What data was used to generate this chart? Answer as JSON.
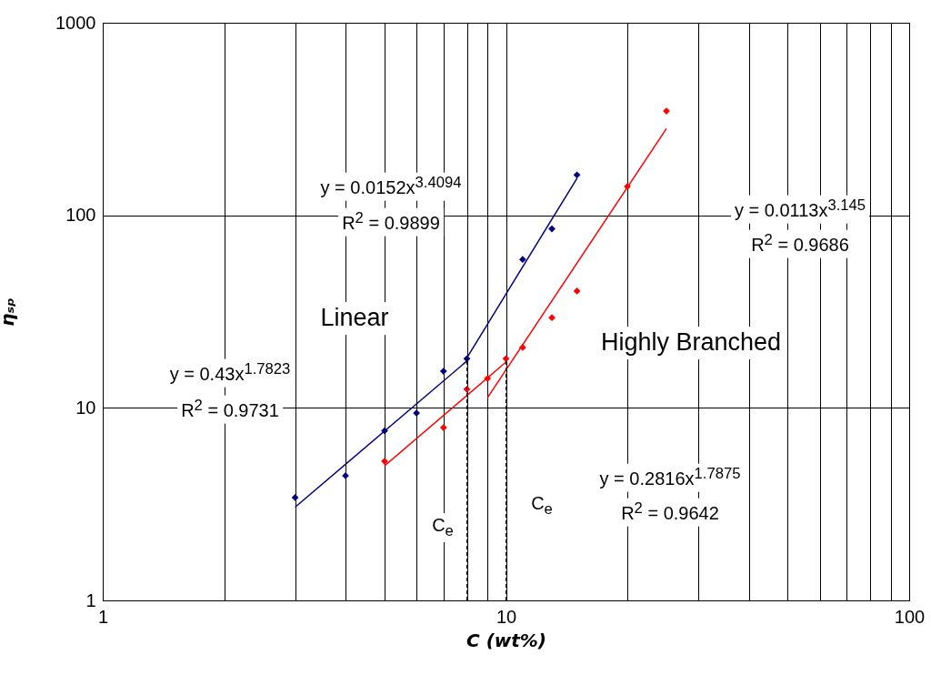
{
  "chart_data": {
    "type": "scatter",
    "xlabel": "C (wt%)",
    "ylabel": "ηₛₚ",
    "log": "xy",
    "grid": true,
    "marker": "diamond",
    "xlim": [
      1,
      100
    ],
    "ylim": [
      1,
      1000
    ],
    "xticks": [
      1,
      {
        "value": 2,
        "label": null
      },
      {
        "value": 3,
        "label": null
      },
      {
        "value": 4,
        "label": null
      },
      {
        "value": 5,
        "label": null
      },
      {
        "value": 6,
        "label": null
      },
      {
        "value": 7,
        "label": null
      },
      {
        "value": 8,
        "label": null
      },
      {
        "value": 9,
        "label": null
      },
      10,
      {
        "value": 20,
        "label": null
      },
      {
        "value": 30,
        "label": null
      },
      {
        "value": 40,
        "label": null
      },
      {
        "value": 50,
        "label": null
      },
      {
        "value": 60,
        "label": null
      },
      {
        "value": 70,
        "label": null
      },
      {
        "value": 80,
        "label": null
      },
      {
        "value": 90,
        "label": null
      },
      100
    ],
    "yticks": [
      1,
      10,
      100,
      1000
    ],
    "series": [
      {
        "color": "#000080",
        "x": [
          3,
          4,
          5,
          6,
          7,
          8,
          11,
          13,
          15
        ],
        "values": [
          3.42,
          4.44,
          7.6,
          9.4,
          15.5,
          18,
          59,
          85,
          162
        ]
      },
      {
        "color": "#ff0000",
        "x": [
          5,
          7,
          8,
          9,
          10,
          11,
          13,
          15,
          20,
          25
        ],
        "values": [
          5.28,
          7.9,
          12.5,
          14.2,
          18,
          20.6,
          29.4,
          40.4,
          141,
          348
        ]
      },
      {
        "type": "line",
        "marker": "none",
        "color": "#000080",
        "line_style": "solid",
        "x": [
          3,
          8
        ],
        "values": [
          3.05,
          17.5
        ]
      },
      {
        "type": "line",
        "marker": "none",
        "color": "#000080",
        "line_style": "solid",
        "x": [
          8,
          15
        ],
        "values": [
          18.2,
          155.6
        ]
      },
      {
        "type": "line",
        "marker": "none",
        "color": "#ff0000",
        "line_style": "solid",
        "x": [
          5,
          10
        ],
        "values": [
          5.0,
          17.3
        ]
      },
      {
        "type": "line",
        "marker": "none",
        "color": "#ff0000",
        "line_style": "solid",
        "x": [
          9,
          25
        ],
        "values": [
          11.3,
          282
        ]
      },
      {
        "type": "line",
        "marker": "none",
        "color": "#000000",
        "line_style": "dashed",
        "x": [
          8,
          8
        ],
        "values": [
          1,
          18
        ]
      },
      {
        "type": "line",
        "marker": "none",
        "color": "#000000",
        "line_style": "dashed",
        "x": [
          10,
          10
        ],
        "values": [
          1,
          18
        ]
      }
    ],
    "annotations": [
      "y = 0.0152x$^{3.4094}$",
      "R$^{2}$ = 0.9899",
      "y = 0.0113x$^{3.145}$",
      "R$^{2}$ = 0.9686",
      "y = 0.43x$^{1.7823}$",
      "R$^{2}$ = 0.9731",
      "y = 0.2816x$^{1.7875}$",
      "R$^{2}$ = 0.9642",
      "Linear",
      "Highly Branched",
      "C$_{e}$",
      "C$_{e}$"
    ]
  }
}
